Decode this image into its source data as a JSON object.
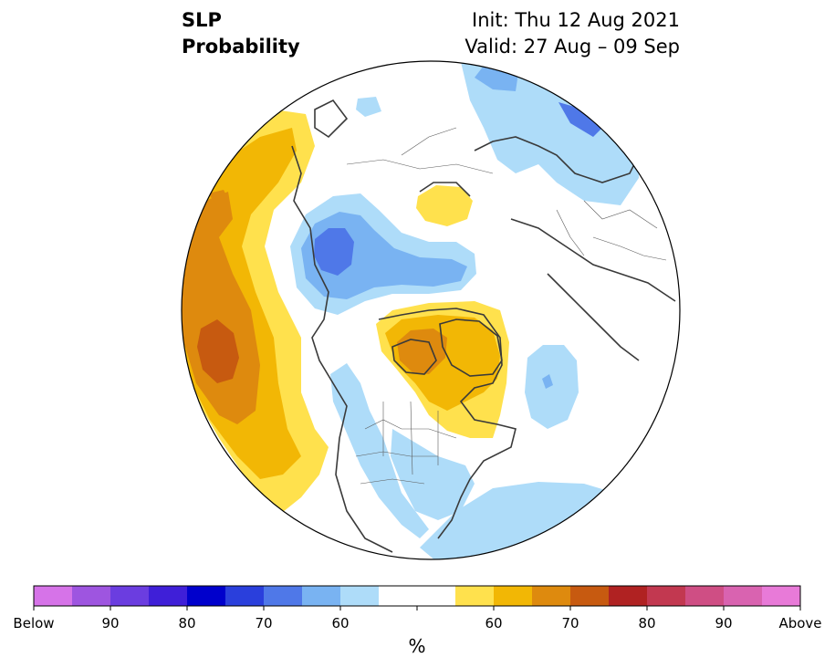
{
  "title": {
    "variable": "SLP",
    "quantity": "Probability",
    "init": "Init: Thu 12 Aug 2021",
    "valid": "Valid: 27 Aug – 09 Sep"
  },
  "colorbar": {
    "unit": "%",
    "colors": [
      "#d673e8",
      "#9e55e0",
      "#6b3de0",
      "#3f1fd8",
      "#0000cc",
      "#2a3fdc",
      "#4f78e8",
      "#79b3f2",
      "#aedcf9",
      "#ffffff",
      "#ffffff",
      "#ffe14d",
      "#f2b705",
      "#de8a0e",
      "#c75a10",
      "#b02222",
      "#c23850",
      "#cf4e84",
      "#d963b0",
      "#e87ad8"
    ],
    "tick_labels": [
      "Below",
      "90",
      "80",
      "70",
      "60",
      "60",
      "70",
      "80",
      "90",
      "Above"
    ]
  },
  "legend_colors": {
    "below_60": "#aedcf9",
    "below_65": "#79b3f2",
    "below_70": "#4f78e8",
    "above_60": "#ffe14d",
    "above_65": "#f2b705",
    "above_70": "#de8a0e",
    "above_75": "#c75a10"
  }
}
